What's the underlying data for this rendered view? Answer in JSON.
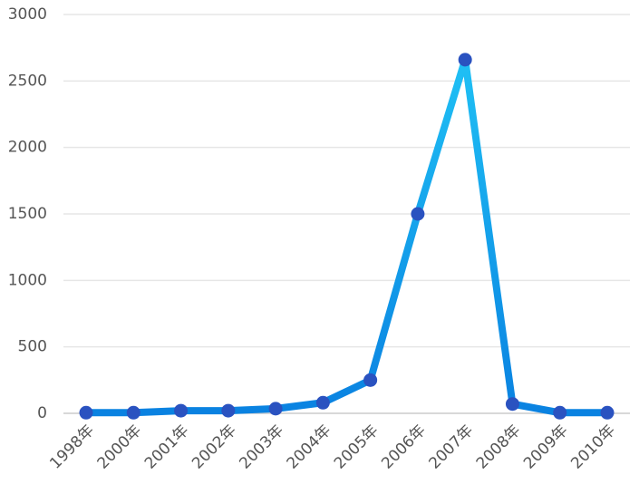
{
  "chart_data": {
    "type": "line",
    "categories": [
      "1998年",
      "2000年",
      "2001年",
      "2002年",
      "2003年",
      "2004年",
      "2005年",
      "2006年",
      "2007年",
      "2008年",
      "2009年",
      "2010年"
    ],
    "values": [
      5,
      5,
      20,
      20,
      35,
      80,
      250,
      1500,
      2660,
      70,
      5,
      5
    ],
    "line_colors": [
      "#22c8f7",
      "#0a82e1"
    ],
    "marker_color": "#2a52c0",
    "ylim": [
      0,
      3000
    ],
    "yticks": [
      0,
      500,
      1000,
      1500,
      2000,
      2500,
      3000
    ],
    "grid": true
  }
}
